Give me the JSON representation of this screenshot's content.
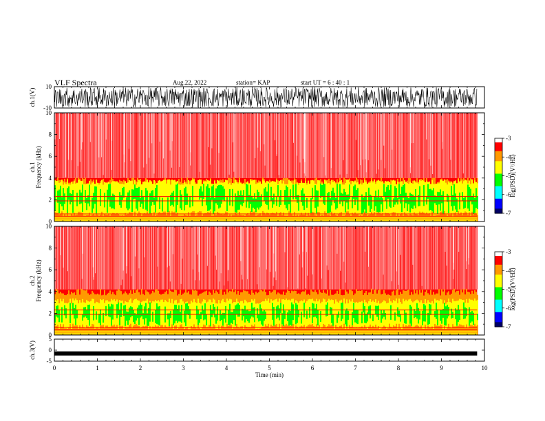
{
  "header": {
    "title": "VLF Spectra",
    "date": "Aug.22, 2022",
    "station": "station= KAP",
    "start": "start  UT =  6 : 40 : 1"
  },
  "colors": {
    "red": "#ff0000",
    "orange": "#ff9900",
    "yellow": "#ffff00",
    "green": "#00ff00",
    "cyan": "#00ffff",
    "blue": "#0000ff",
    "navy": "#000066"
  },
  "chart_data": [
    {
      "type": "line",
      "name": "ch1-waveform",
      "ylabel": "ch.1(V)",
      "ylim": [
        -10,
        10
      ],
      "y_tick_labels": [
        "10",
        "-10"
      ],
      "xlim": [
        0,
        10
      ],
      "data_end_min": 9.83
    },
    {
      "type": "heatmap",
      "name": "ch1-spectrogram",
      "ylabel": "ch.1\nFrequency (kHz)",
      "ylim": [
        0,
        10
      ],
      "y_tick_labels": [
        "0",
        "2",
        "4",
        "6",
        "8",
        "10"
      ],
      "xlim": [
        0,
        10
      ],
      "colorbar": {
        "label": "log(PSD)(V²/Hz)",
        "range": [
          -7,
          -3
        ],
        "tick_labels": [
          "-3",
          "-4",
          "-5",
          "-6",
          "-7"
        ]
      },
      "bands_khz": {
        "noise_floor_top": 4.0,
        "green_low": 0.7,
        "green_high": 3.5
      }
    },
    {
      "type": "heatmap",
      "name": "ch2-spectrogram",
      "ylabel": "ch.2\nFrequency (kHz)",
      "ylim": [
        0,
        10
      ],
      "y_tick_labels": [
        "0",
        "2",
        "4",
        "6",
        "8",
        "10"
      ],
      "xlim": [
        0,
        10
      ],
      "colorbar": {
        "label": "log(PSD)(V²/Hz)",
        "range": [
          -7,
          -3
        ],
        "tick_labels": [
          "-3",
          "-4",
          "-5",
          "-6",
          "-7"
        ]
      },
      "bands_khz": {
        "noise_floor_top": 4.2,
        "green_low": 0.8,
        "green_high": 3.0
      }
    },
    {
      "type": "line",
      "name": "ch3-waveform",
      "ylabel": "ch.3(V)",
      "ylim": [
        -5,
        5
      ],
      "y_tick_labels": [
        "5",
        "0",
        "-5"
      ],
      "xlim": [
        0,
        10
      ],
      "x_tick_labels": [
        "0",
        "1",
        "2",
        "3",
        "4",
        "5",
        "6",
        "7",
        "8",
        "9",
        "10"
      ],
      "xlabel": "Time (min)",
      "level_v": -1.5,
      "data_end_min": 9.83
    }
  ]
}
